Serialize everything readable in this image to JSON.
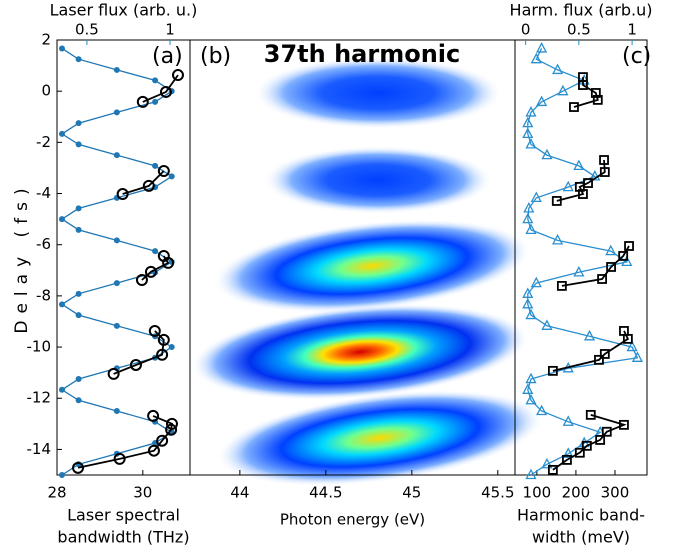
{
  "chart_data": [
    {
      "type": "line",
      "label": "(a)",
      "ylabel": "Delay (fs)",
      "ylim": [
        -15,
        2
      ],
      "yticks": [
        2,
        0,
        -2,
        -4,
        -6,
        -8,
        -10,
        -12,
        -14
      ],
      "xlabel": [
        "Laser spectral",
        "bandwidth (THz)"
      ],
      "xlim": [
        28,
        31.1
      ],
      "xticks": [
        28,
        30
      ],
      "x2label": "Laser flux (arb. u.)",
      "x2lim": [
        0.32,
        1.12
      ],
      "x2ticks": [
        0.5,
        1
      ],
      "x2color": "#1f8fc4",
      "series": [
        {
          "axis": "x2",
          "color": "#1f77b4",
          "marker": "dot",
          "y": [
            1.67,
            1.25,
            0.83,
            0.42,
            0,
            -0.42,
            -0.83,
            -1.25,
            -1.67,
            -2.08,
            -2.5,
            -2.92,
            -3.33,
            -3.75,
            -4.17,
            -4.58,
            -5,
            -5.42,
            -5.83,
            -6.25,
            -6.67,
            -7.08,
            -7.5,
            -7.92,
            -8.33,
            -8.75,
            -9.17,
            -9.58,
            -10,
            -10.42,
            -10.83,
            -11.25,
            -11.67,
            -12.08,
            -12.5,
            -12.92,
            -13.33,
            -13.75,
            -14.17,
            -14.58,
            -15
          ],
          "values": [
            0.35,
            0.45,
            0.68,
            0.91,
            1.01,
            0.91,
            0.68,
            0.45,
            0.35,
            0.45,
            0.68,
            0.91,
            1.01,
            0.91,
            0.68,
            0.45,
            0.35,
            0.45,
            0.68,
            0.91,
            1.01,
            0.91,
            0.68,
            0.45,
            0.35,
            0.45,
            0.68,
            0.91,
            1.01,
            0.91,
            0.68,
            0.45,
            0.35,
            0.45,
            0.68,
            0.91,
            1.01,
            0.91,
            0.68,
            0.45,
            0.35
          ]
        },
        {
          "axis": "x",
          "color": "#000000",
          "marker": "circle",
          "y": [
            0.63,
            -0.03,
            -0.42,
            null,
            -3.12,
            -3.7,
            -4.02,
            null,
            -6.44,
            -6.71,
            -7.06,
            -7.38,
            null,
            -9.37,
            -9.72,
            -10.3,
            -10.7,
            -11.05,
            null,
            -12.69,
            -13.0,
            -13.23,
            -13.66,
            -14.05,
            -14.37,
            -14.72
          ],
          "values": [
            30.82,
            30.54,
            30.0,
            null,
            30.49,
            30.14,
            29.53,
            null,
            30.49,
            30.59,
            30.19,
            29.98,
            null,
            30.28,
            30.49,
            30.45,
            29.84,
            29.32,
            null,
            30.24,
            30.68,
            30.66,
            30.45,
            30.26,
            29.46,
            28.49
          ]
        }
      ]
    },
    {
      "type": "heatmap",
      "label": "(b)",
      "title": "37th harmonic",
      "xlabel": "Photon energy (eV)",
      "xlim": [
        43.71,
        45.6
      ],
      "xticks": [
        44,
        44.5,
        45,
        45.5
      ],
      "xcolor": "#4b2ca0"
    },
    {
      "type": "line",
      "label": "(c)",
      "ylim": [
        -15,
        2
      ],
      "xlabel": [
        "Harmonic band-",
        "width (meV)"
      ],
      "xlim": [
        44,
        382
      ],
      "xticks": [
        100,
        200,
        300
      ],
      "x2label": "Harm. flux (arb.u)",
      "x2lim": [
        -0.1,
        1.14
      ],
      "x2ticks": [
        0,
        0.5,
        1
      ],
      "x2color": "#1f8fc4",
      "series": [
        {
          "axis": "x2",
          "color": "#2a8fd0",
          "marker": "triangle",
          "y": [
            1.67,
            1.25,
            0.83,
            0.42,
            0,
            -0.42,
            -0.83,
            -1.25,
            -1.67,
            -2.08,
            -2.5,
            -2.92,
            -3.33,
            -3.75,
            -4.17,
            -4.58,
            -5,
            -5.42,
            -5.83,
            -6.25,
            -6.67,
            -7.08,
            -7.5,
            -7.92,
            -8.33,
            -8.75,
            -9.17,
            -9.58,
            -10,
            -10.42,
            -10.83,
            -11.25,
            -11.67,
            -12.08,
            -12.5,
            -12.92,
            -13.33,
            -13.75,
            -14.17,
            -14.58,
            -15
          ],
          "values": [
            0.15,
            0.1,
            0.3,
            0.55,
            0.35,
            0.15,
            0.05,
            0.02,
            0.02,
            0.05,
            0.2,
            0.5,
            0.65,
            0.4,
            0.1,
            0.03,
            0.02,
            0.05,
            0.3,
            0.8,
            0.95,
            0.5,
            0.1,
            0.02,
            0.02,
            0.05,
            0.2,
            0.6,
            1.0,
            1.05,
            0.4,
            0.05,
            0.02,
            0.05,
            0.15,
            0.4,
            0.7,
            0.55,
            0.4,
            0.2,
            0.05
          ]
        },
        {
          "axis": "x",
          "color": "#000000",
          "marker": "square",
          "y": [
            0.55,
            0.24,
            -0.07,
            -0.34,
            -0.62,
            null,
            -2.69,
            -3.16,
            -3.59,
            -3.74,
            -4.02,
            -4.29,
            null,
            -6.05,
            -6.44,
            -6.87,
            -7.34,
            -7.61,
            null,
            -9.37,
            -9.68,
            -10.27,
            -10.5,
            -10.93,
            null,
            -12.65,
            -13.04,
            -13.31,
            -13.63,
            -13.86,
            -14.13,
            -14.41,
            -14.8
          ],
          "values": [
            218,
            218,
            251,
            256,
            195,
            null,
            272,
            274,
            231,
            210,
            218,
            151,
            null,
            336,
            321,
            290,
            267,
            164,
            null,
            323,
            333,
            274,
            259,
            141,
            null,
            238,
            323,
            279,
            262,
            228,
            210,
            177,
            141
          ]
        }
      ]
    }
  ]
}
